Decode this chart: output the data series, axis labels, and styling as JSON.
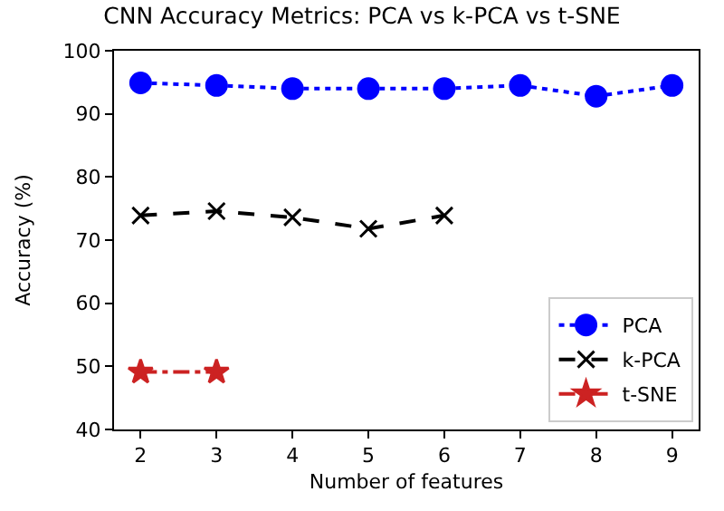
{
  "chart_data": {
    "type": "line",
    "title": "CNN Accuracy Metrics: PCA vs k-PCA vs t-SNE",
    "xlabel": "Number of features",
    "ylabel": "Accuracy (%)",
    "xlim": [
      1.65,
      9.35
    ],
    "xticks": [
      2,
      3,
      4,
      5,
      6,
      7,
      8,
      9
    ],
    "ylim": [
      40,
      100
    ],
    "yticks": [
      40,
      50,
      60,
      70,
      80,
      90,
      100
    ],
    "legend": "bottom right",
    "series": [
      {
        "name": "PCA",
        "color": "#0000ff",
        "marker": "circle",
        "line_style": "dotted",
        "x": [
          2,
          3,
          4,
          5,
          6,
          7,
          8,
          9
        ],
        "values": [
          94.9,
          94.5,
          94.0,
          94.0,
          94.0,
          94.5,
          92.8,
          94.5
        ]
      },
      {
        "name": "k-PCA",
        "color": "#000000",
        "marker": "cross",
        "line_style": "dashed",
        "x": [
          2,
          3,
          4,
          5,
          6
        ],
        "values": [
          73.9,
          74.6,
          73.6,
          71.8,
          73.9
        ]
      },
      {
        "name": "t-SNE",
        "color": "#cc2222",
        "marker": "star",
        "line_style": "dashdot",
        "x": [
          2,
          3
        ],
        "values": [
          49.1,
          49.1
        ]
      }
    ]
  }
}
